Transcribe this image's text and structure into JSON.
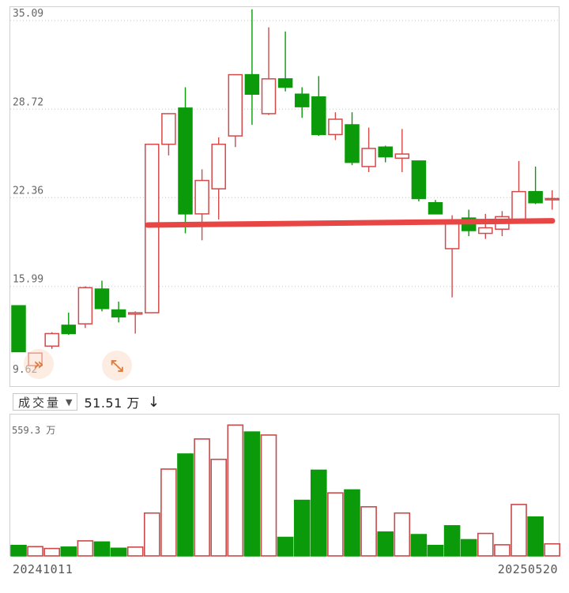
{
  "chart_data": [
    {
      "type": "candlestick",
      "y_ticks": [
        "35.09",
        "28.72",
        "22.36",
        "15.99",
        "9.62"
      ],
      "ylim": [
        9.62,
        35.09
      ],
      "grid": "dotted-horizontal",
      "up_color": "#d24a4a",
      "down_color": "#0a9a0a",
      "annotation": {
        "type": "horizontal-line",
        "y_start": 20.4,
        "y_end": 20.7,
        "color": "#e84545"
      },
      "candles": [
        {
          "o": 14.6,
          "h": 14.6,
          "l": 11.3,
          "c": 11.3
        },
        {
          "o": 10.3,
          "h": 11.2,
          "l": 10.0,
          "c": 11.2
        },
        {
          "o": 11.7,
          "h": 12.7,
          "l": 11.5,
          "c": 12.6
        },
        {
          "o": 13.2,
          "h": 14.1,
          "l": 12.5,
          "c": 12.6
        },
        {
          "o": 13.3,
          "h": 16.0,
          "l": 13.0,
          "c": 15.9
        },
        {
          "o": 15.8,
          "h": 16.4,
          "l": 14.2,
          "c": 14.4
        },
        {
          "o": 14.3,
          "h": 14.9,
          "l": 13.4,
          "c": 13.8
        },
        {
          "o": 14.0,
          "h": 14.2,
          "l": 12.6,
          "c": 14.1
        },
        {
          "o": 14.1,
          "h": 26.2,
          "l": 14.1,
          "c": 26.2
        },
        {
          "o": 26.2,
          "h": 28.4,
          "l": 25.4,
          "c": 28.4
        },
        {
          "o": 28.8,
          "h": 30.3,
          "l": 19.8,
          "c": 21.2
        },
        {
          "o": 21.2,
          "h": 24.4,
          "l": 19.3,
          "c": 23.6
        },
        {
          "o": 23.0,
          "h": 26.7,
          "l": 20.8,
          "c": 26.2
        },
        {
          "o": 26.8,
          "h": 31.2,
          "l": 26.0,
          "c": 31.2
        },
        {
          "o": 31.2,
          "h": 35.9,
          "l": 27.6,
          "c": 29.8
        },
        {
          "o": 28.4,
          "h": 34.6,
          "l": 28.3,
          "c": 30.9
        },
        {
          "o": 30.9,
          "h": 34.3,
          "l": 30.0,
          "c": 30.3
        },
        {
          "o": 29.8,
          "h": 30.3,
          "l": 28.1,
          "c": 28.9
        },
        {
          "o": 29.6,
          "h": 31.1,
          "l": 26.8,
          "c": 26.9
        },
        {
          "o": 26.9,
          "h": 28.5,
          "l": 26.5,
          "c": 28.0
        },
        {
          "o": 27.6,
          "h": 28.5,
          "l": 24.7,
          "c": 24.9
        },
        {
          "o": 24.6,
          "h": 27.4,
          "l": 24.2,
          "c": 25.9
        },
        {
          "o": 26.0,
          "h": 26.1,
          "l": 24.9,
          "c": 25.3
        },
        {
          "o": 25.2,
          "h": 27.3,
          "l": 24.2,
          "c": 25.5
        },
        {
          "o": 25.0,
          "h": 25.0,
          "l": 22.1,
          "c": 22.3
        },
        {
          "o": 22.0,
          "h": 22.2,
          "l": 21.2,
          "c": 21.2
        },
        {
          "o": 18.7,
          "h": 21.1,
          "l": 15.2,
          "c": 20.6
        },
        {
          "o": 20.9,
          "h": 21.5,
          "l": 19.6,
          "c": 20.0
        },
        {
          "o": 19.8,
          "h": 21.2,
          "l": 19.4,
          "c": 20.2
        },
        {
          "o": 20.1,
          "h": 21.4,
          "l": 19.6,
          "c": 21.0
        },
        {
          "o": 20.7,
          "h": 25.0,
          "l": 20.5,
          "c": 22.8
        },
        {
          "o": 22.8,
          "h": 24.6,
          "l": 21.9,
          "c": 22.0
        },
        {
          "o": 22.3,
          "h": 22.9,
          "l": 21.5,
          "c": 22.3
        }
      ]
    },
    {
      "type": "bar",
      "title": "成交量",
      "value_label": "51.51 万",
      "max_label": "559.3 万",
      "ylim": [
        0,
        559.3
      ],
      "x_start_label": "20241011",
      "x_end_label": "20250520",
      "series": [
        {
          "values": [
            45,
            40,
            32,
            38,
            65,
            60,
            33,
            38,
            185,
            375,
            440,
            505,
            417,
            565,
            535,
            522,
            80,
            240,
            370,
            272,
            285,
            212,
            103,
            185,
            92,
            45,
            130,
            70,
            97,
            48,
            222,
            168,
            52
          ],
          "directions": [
            "down",
            "up",
            "up",
            "down",
            "up",
            "down",
            "down",
            "up",
            "up",
            "up",
            "down",
            "up",
            "up",
            "up",
            "down",
            "up",
            "down",
            "down",
            "down",
            "up",
            "down",
            "up",
            "down",
            "up",
            "down",
            "down",
            "down",
            "down",
            "up",
            "up",
            "up",
            "down",
            "up"
          ]
        }
      ]
    }
  ]
}
